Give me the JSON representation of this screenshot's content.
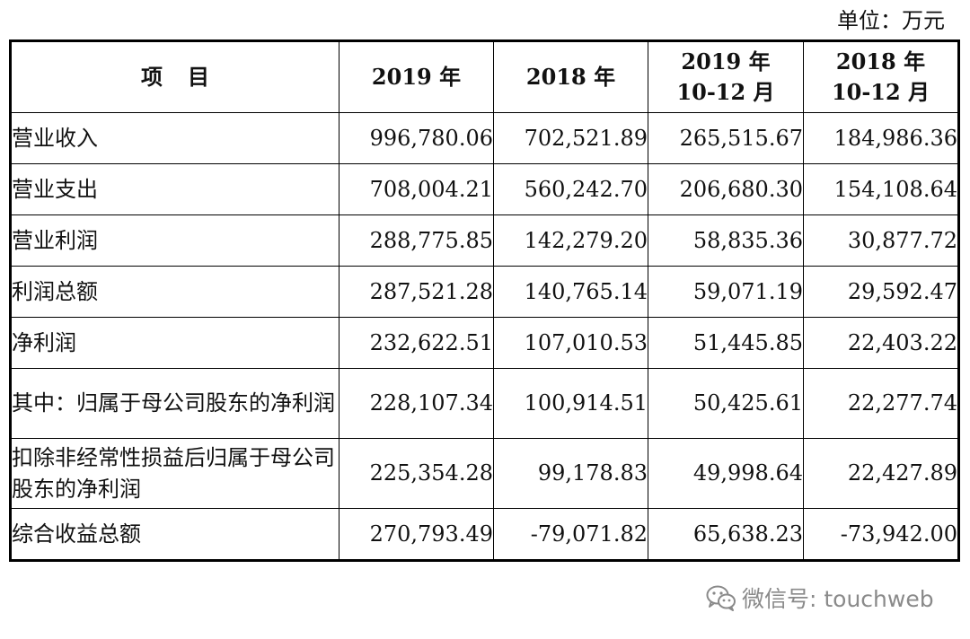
{
  "unit_label": "单位：万元",
  "table": {
    "headers": [
      {
        "lines": [
          "项目"
        ]
      },
      {
        "lines": [
          "2019 年"
        ]
      },
      {
        "lines": [
          "2018 年"
        ]
      },
      {
        "lines": [
          "2019 年",
          "10-12 月"
        ]
      },
      {
        "lines": [
          "2018 年",
          "10-12 月"
        ]
      }
    ],
    "rows": [
      {
        "label": "营业收入",
        "values": [
          "996,780.06",
          "702,521.89",
          "265,515.67",
          "184,986.36"
        ]
      },
      {
        "label": "营业支出",
        "values": [
          "708,004.21",
          "560,242.70",
          "206,680.30",
          "154,108.64"
        ]
      },
      {
        "label": "营业利润",
        "values": [
          "288,775.85",
          "142,279.20",
          "58,835.36",
          "30,877.72"
        ]
      },
      {
        "label": "利润总额",
        "values": [
          "287,521.28",
          "140,765.14",
          "59,071.19",
          "29,592.47"
        ]
      },
      {
        "label": "净利润",
        "values": [
          "232,622.51",
          "107,010.53",
          "51,445.85",
          "22,403.22"
        ]
      },
      {
        "label": "其中：归属于母公司股东的净利润",
        "values": [
          "228,107.34",
          "100,914.51",
          "50,425.61",
          "22,277.74"
        ]
      },
      {
        "label": "扣除非经常性损益后归属于母公司股东的净利润",
        "values": [
          "225,354.28",
          "99,178.83",
          "49,998.64",
          "22,427.89"
        ]
      },
      {
        "label": "综合收益总额",
        "values": [
          "270,793.49",
          "-79,071.82",
          "65,638.23",
          "-73,942.00"
        ]
      }
    ]
  },
  "watermark": {
    "icon": "wechat-icon",
    "text": "微信号: touchweb",
    "color": "#8a8a8a"
  }
}
